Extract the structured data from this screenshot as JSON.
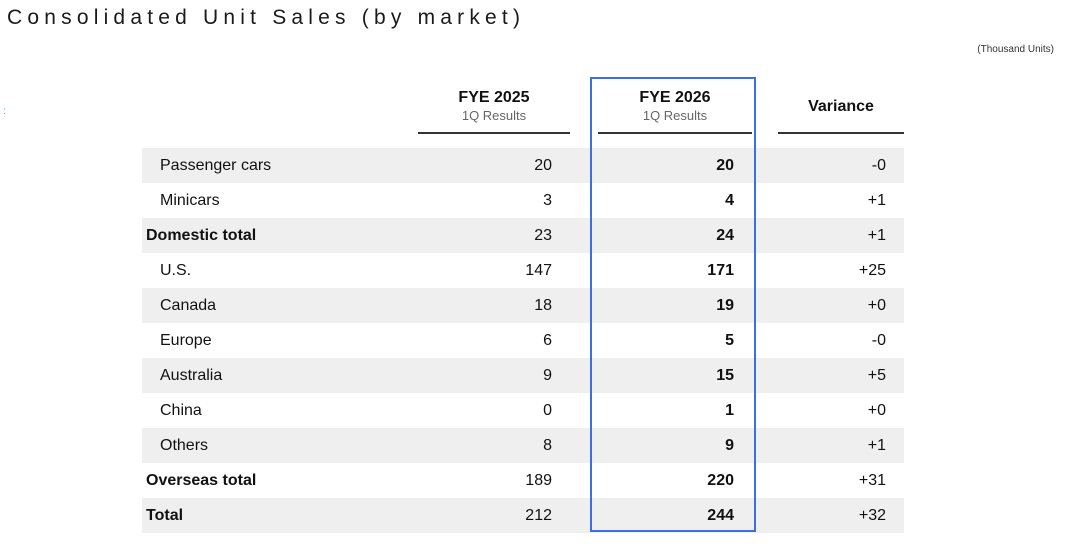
{
  "title": "Consolidated Unit Sales (by market)",
  "units_note": "(Thousand Units)",
  "margin_mark": ":",
  "columns": {
    "fye2025": {
      "year": "FYE 2025",
      "sub": "1Q Results"
    },
    "fye2026": {
      "year": "FYE 2026",
      "sub": "1Q Results"
    },
    "variance": {
      "label": "Variance"
    }
  },
  "rows": [
    {
      "label": "Passenger cars",
      "fye2025": "20",
      "fye2026": "20",
      "variance": "-0"
    },
    {
      "label": "Minicars",
      "fye2025": "3",
      "fye2026": "4",
      "variance": "+1"
    },
    {
      "label": "Domestic total",
      "fye2025": "23",
      "fye2026": "24",
      "variance": "+1"
    },
    {
      "label": "U.S.",
      "fye2025": "147",
      "fye2026": "171",
      "variance": "+25"
    },
    {
      "label": "Canada",
      "fye2025": "18",
      "fye2026": "19",
      "variance": "+0"
    },
    {
      "label": "Europe",
      "fye2025": "6",
      "fye2026": "5",
      "variance": "-0"
    },
    {
      "label": "Australia",
      "fye2025": "9",
      "fye2026": "15",
      "variance": "+5"
    },
    {
      "label": "China",
      "fye2025": "0",
      "fye2026": "1",
      "variance": "+0"
    },
    {
      "label": "Others",
      "fye2025": "8",
      "fye2026": "9",
      "variance": "+1"
    },
    {
      "label": "Overseas total",
      "fye2025": "189",
      "fye2026": "220",
      "variance": "+31"
    },
    {
      "label": "Total",
      "fye2025": "212",
      "fye2026": "244",
      "variance": "+32"
    }
  ],
  "highlight_color": "#3d6fe0",
  "row_shade_color": "#efefef"
}
